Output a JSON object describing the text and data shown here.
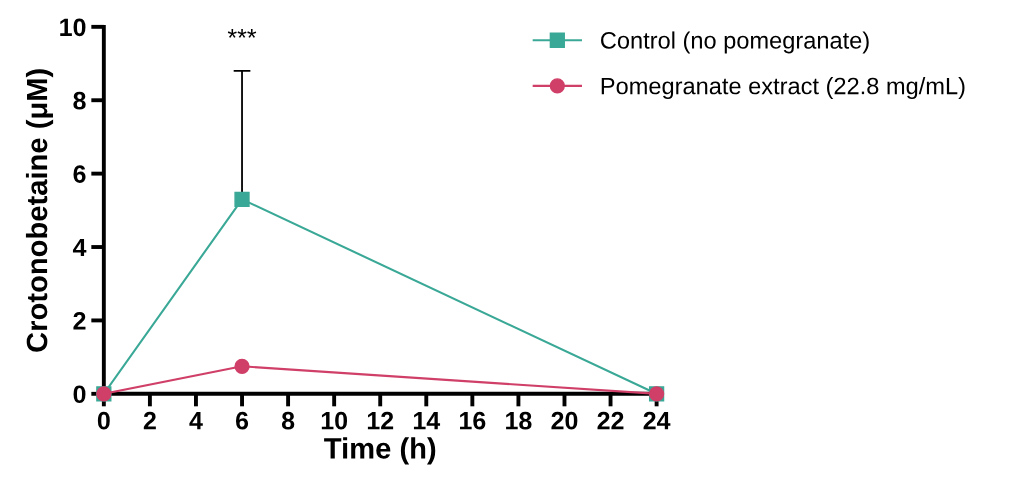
{
  "chart_data": {
    "type": "line",
    "xlabel": "Time (h)",
    "ylabel": "Crotonobetaine (μM)",
    "x": [
      0,
      6,
      24
    ],
    "series": [
      {
        "name": "Control (no pomegranate)",
        "color": "#3aa896",
        "marker": "square",
        "values": [
          0,
          5.3,
          0
        ],
        "errors": [
          null,
          [
            5.3,
            8.8
          ],
          null
        ]
      },
      {
        "name": "Pomegranate extract (22.8 mg/mL)",
        "color": "#d03f68",
        "marker": "circle",
        "values": [
          0,
          0.75,
          0
        ]
      }
    ],
    "annotations": [
      "***"
    ],
    "xlim": [
      0,
      24
    ],
    "xticks": [
      0,
      2,
      4,
      6,
      8,
      10,
      12,
      14,
      16,
      18,
      20,
      22,
      24
    ],
    "ylim": [
      0,
      10
    ],
    "yticks": [
      0,
      2,
      4,
      6,
      8,
      10
    ],
    "legend": "top right",
    "grid": false
  }
}
